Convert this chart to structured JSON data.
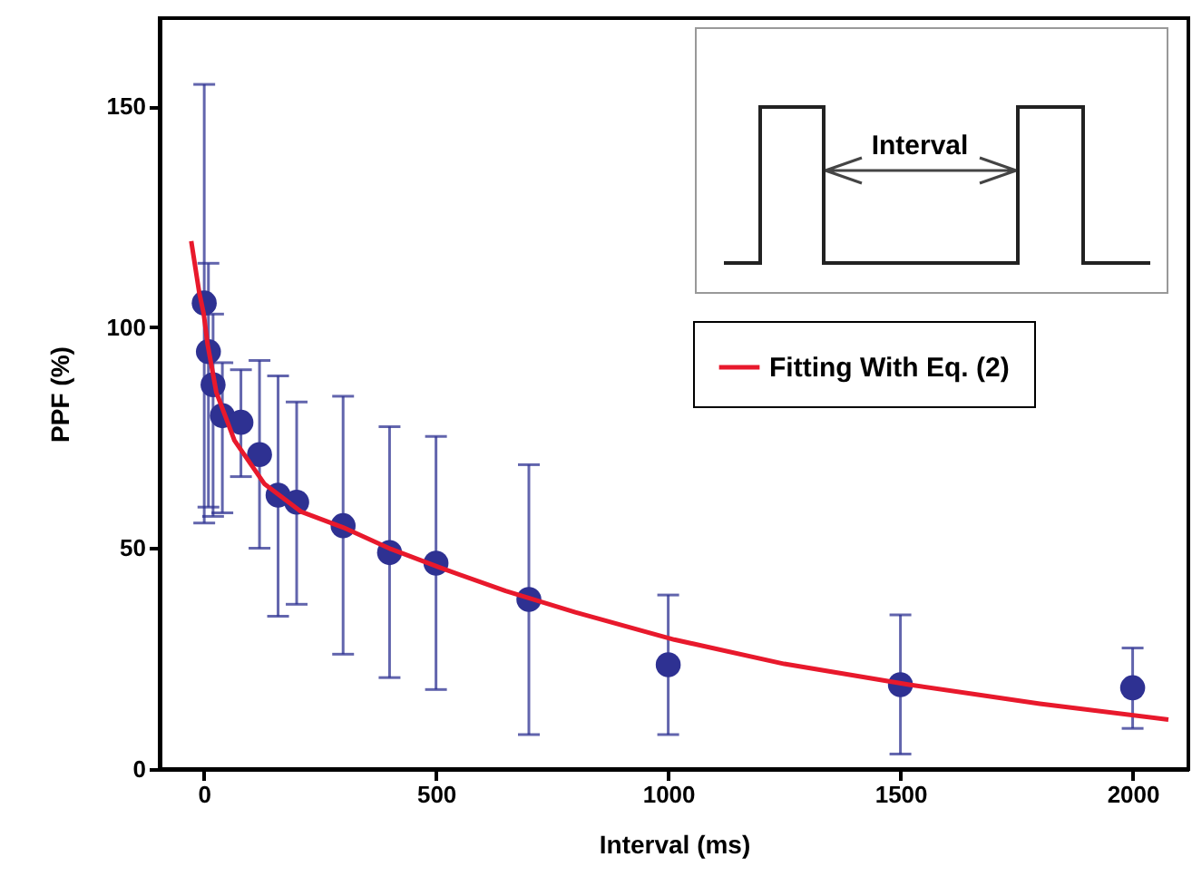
{
  "chart_data": {
    "type": "scatter",
    "xlabel": "Interval (ms)",
    "ylabel": "PPF (%)",
    "xlim": [
      -95,
      2120
    ],
    "ylim": [
      0,
      170
    ],
    "xticks": [
      0,
      500,
      1000,
      1500,
      2000
    ],
    "yticks": [
      0,
      50,
      100,
      150
    ],
    "grid": false,
    "legend": "top right",
    "annotations": [
      "Interval"
    ],
    "series": [
      {
        "color": "#2e3192",
        "marker": "circle",
        "x": [
          1,
          10,
          20,
          40,
          80,
          120,
          160,
          200,
          300,
          400,
          500,
          700,
          1000,
          1500,
          2000
        ],
        "values": [
          105.5,
          94.5,
          87,
          80,
          78.5,
          71.2,
          62,
          60.4,
          55.1,
          49,
          46.6,
          38.4,
          23.6,
          19.1,
          18.4
        ],
        "errors": [
          [
            55.7,
            155
          ],
          [
            59.3,
            114.5
          ],
          [
            57.2,
            103
          ],
          [
            58,
            92
          ],
          [
            66.2,
            90.4
          ],
          [
            50,
            92.5
          ],
          [
            34.6,
            89
          ],
          [
            37.3,
            83.1
          ],
          [
            26,
            84.4
          ],
          [
            20.7,
            77.5
          ],
          [
            18,
            75.3
          ],
          [
            7.8,
            68.9
          ],
          [
            7.8,
            39.4
          ],
          [
            3.4,
            34.9
          ],
          [
            9.2,
            27.4
          ]
        ]
      },
      {
        "type": "line",
        "name": "Fitting With Eq. (2)",
        "color": "#e8192c",
        "x": [
          -27,
          -10,
          0,
          8,
          27,
          66,
          131,
          209,
          300,
          403,
          506,
          650,
          800,
          1013,
          1250,
          1519,
          1800,
          2077
        ],
        "values": [
          119.5,
          108,
          103,
          96.3,
          85.3,
          74.4,
          64.5,
          58.3,
          54.7,
          49.8,
          45.7,
          40.3,
          35.5,
          29.3,
          23.8,
          19.1,
          14.8,
          11.2
        ]
      }
    ]
  }
}
